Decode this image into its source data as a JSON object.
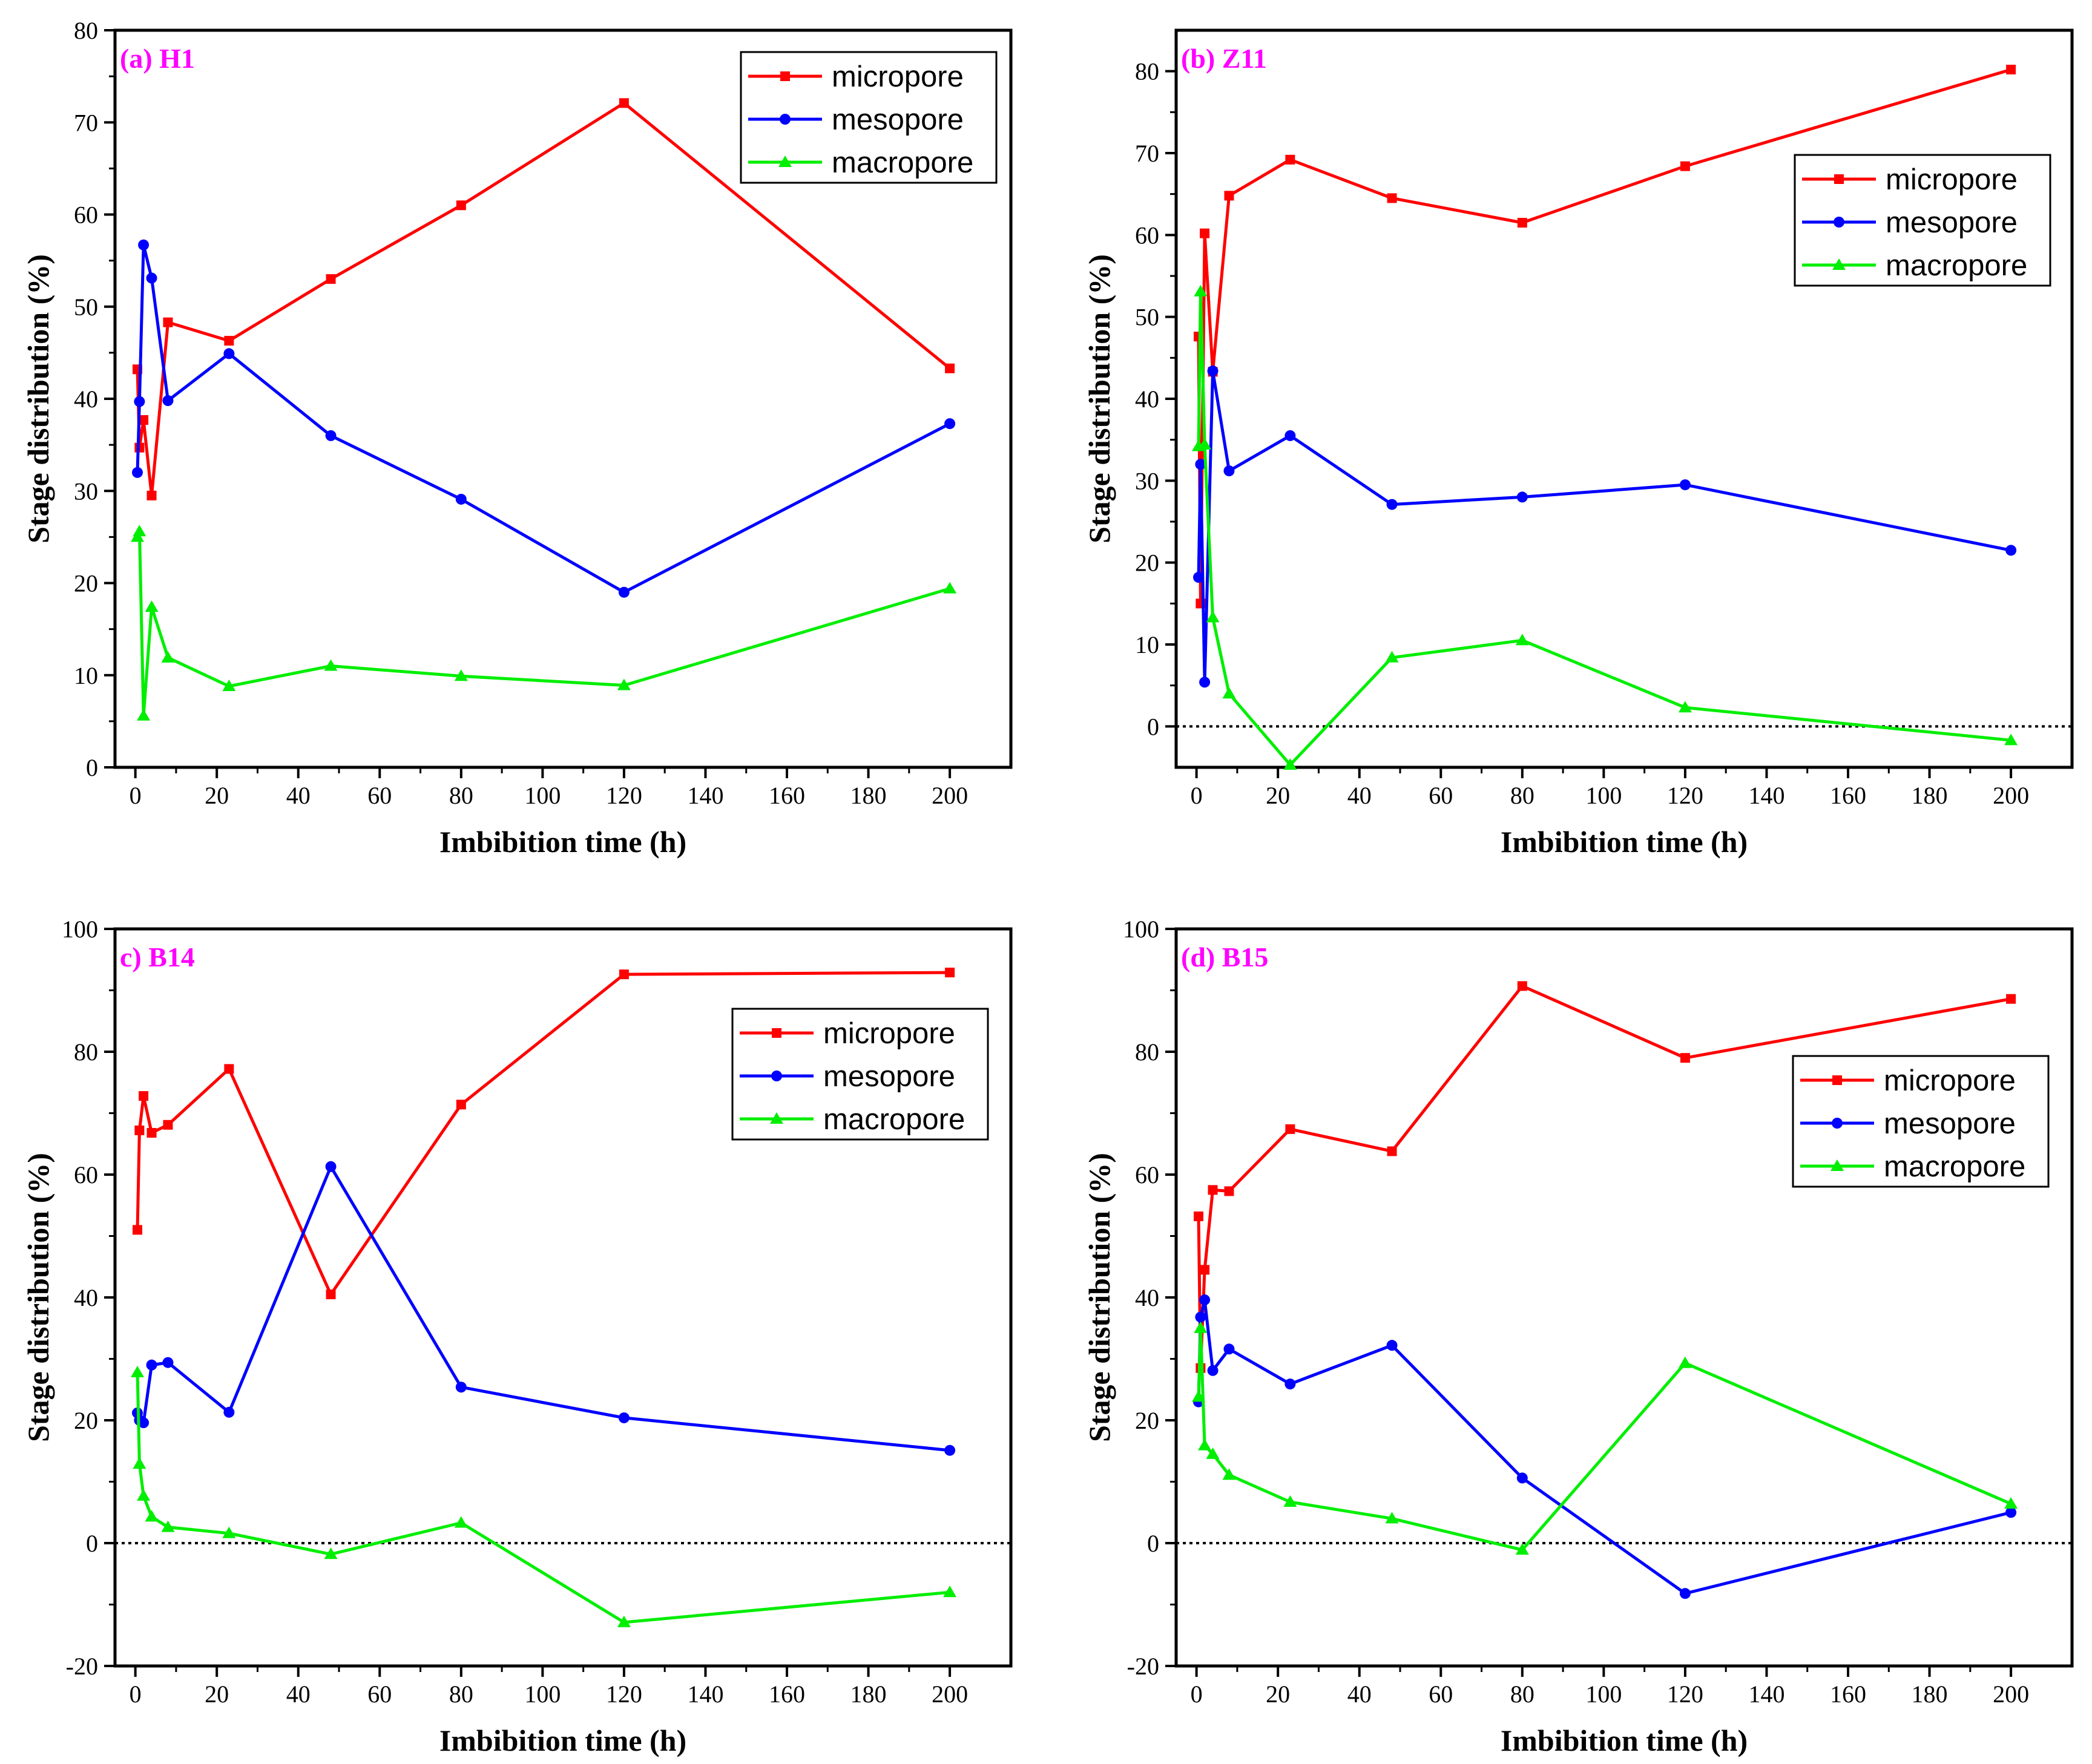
{
  "colors": {
    "micropore": "#ff0000",
    "mesopore": "#0000ff",
    "macropore": "#00ee00",
    "label": "#ff00ff",
    "axis": "#000000"
  },
  "chart_data": [
    {
      "type": "line",
      "panel_label": "(a) H1",
      "xlabel": "Imbibition time (h)",
      "ylabel": "Stage distribution (%)",
      "xlim": [
        -5,
        215
      ],
      "ylim": [
        0,
        80
      ],
      "xticks": [
        0,
        20,
        40,
        60,
        80,
        100,
        120,
        140,
        160,
        180,
        200
      ],
      "yticks": [
        0,
        10,
        20,
        30,
        40,
        50,
        60,
        70,
        80
      ],
      "zero_line": false,
      "legend_position": "top-right",
      "series": [
        {
          "name": "micropore",
          "marker": "square",
          "x": [
            0.5,
            1,
            2,
            4,
            8,
            23,
            48,
            80,
            120,
            200
          ],
          "y": [
            43.2,
            34.7,
            37.7,
            29.5,
            48.3,
            46.3,
            53,
            61,
            72.1,
            43.3
          ]
        },
        {
          "name": "mesopore",
          "marker": "circle",
          "x": [
            0.5,
            1,
            2,
            4,
            8,
            23,
            48,
            80,
            120,
            200
          ],
          "y": [
            32,
            39.7,
            56.7,
            53.1,
            39.8,
            44.9,
            36,
            29.1,
            19,
            37.3
          ]
        },
        {
          "name": "macropore",
          "marker": "triangle",
          "x": [
            0.5,
            1,
            2,
            4,
            8,
            23,
            48,
            80,
            120,
            200
          ],
          "y": [
            25,
            25.6,
            5.6,
            17.4,
            11.9,
            8.8,
            11,
            9.9,
            8.9,
            19.4
          ]
        }
      ]
    },
    {
      "type": "line",
      "panel_label": "(b) Z11",
      "xlabel": "Imbibition time (h)",
      "ylabel": "Stage distribution (%)",
      "xlim": [
        -5,
        215
      ],
      "ylim": [
        -5,
        85
      ],
      "xticks": [
        0,
        20,
        40,
        60,
        80,
        100,
        120,
        140,
        160,
        180,
        200
      ],
      "yticks": [
        0,
        10,
        20,
        30,
        40,
        50,
        60,
        70,
        80
      ],
      "zero_line": true,
      "legend_position": "upper-right",
      "series": [
        {
          "name": "micropore",
          "marker": "square",
          "x": [
            0.5,
            1,
            2,
            4,
            8,
            23,
            48,
            80,
            120,
            200
          ],
          "y": [
            47.6,
            15,
            60.2,
            43.3,
            64.8,
            69.2,
            64.5,
            61.5,
            68.4,
            80.2
          ]
        },
        {
          "name": "mesopore",
          "marker": "circle",
          "x": [
            0.5,
            1,
            2,
            4,
            8,
            23,
            48,
            80,
            120,
            200
          ],
          "y": [
            18.2,
            32,
            5.4,
            43.4,
            31.2,
            35.5,
            27.1,
            28,
            29.5,
            21.5
          ]
        },
        {
          "name": "macropore",
          "marker": "triangle",
          "x": [
            0.5,
            1,
            2,
            4,
            8,
            23,
            48,
            80,
            120,
            200
          ],
          "y": [
            34.2,
            53.1,
            34.4,
            13.3,
            4,
            -4.7,
            8.4,
            10.5,
            2.3,
            -1.7
          ]
        }
      ]
    },
    {
      "type": "line",
      "panel_label": "c) B14",
      "xlabel": "Imbibition time (h)",
      "ylabel": "Stage distribution (%)",
      "xlim": [
        -5,
        215
      ],
      "ylim": [
        -20,
        100
      ],
      "xticks": [
        0,
        20,
        40,
        60,
        80,
        100,
        120,
        140,
        160,
        180,
        200
      ],
      "yticks": [
        -20,
        0,
        20,
        40,
        60,
        80,
        100
      ],
      "zero_line": true,
      "legend_position": "upper-right",
      "series": [
        {
          "name": "micropore",
          "marker": "square",
          "x": [
            0.5,
            1,
            2,
            4,
            8,
            23,
            48,
            80,
            120,
            200
          ],
          "y": [
            51,
            67.2,
            72.8,
            66.8,
            68.1,
            77.2,
            40.5,
            71.4,
            92.6,
            92.9
          ]
        },
        {
          "name": "mesopore",
          "marker": "circle",
          "x": [
            0.5,
            1,
            2,
            4,
            8,
            23,
            48,
            80,
            120,
            200
          ],
          "y": [
            21.2,
            20,
            19.6,
            29,
            29.4,
            21.3,
            61.3,
            25.4,
            20.4,
            15.1
          ]
        },
        {
          "name": "macropore",
          "marker": "triangle",
          "x": [
            0.5,
            1,
            2,
            4,
            8,
            23,
            48,
            80,
            120,
            200
          ],
          "y": [
            27.8,
            12.9,
            7.7,
            4.3,
            2.6,
            1.6,
            -1.8,
            3.3,
            -12.9,
            -8
          ]
        }
      ]
    },
    {
      "type": "line",
      "panel_label": "(d) B15",
      "xlabel": "Imbibition time (h)",
      "ylabel": "Stage distribution (%)",
      "xlim": [
        -5,
        215
      ],
      "ylim": [
        -20,
        100
      ],
      "xticks": [
        0,
        20,
        40,
        60,
        80,
        100,
        120,
        140,
        160,
        180,
        200
      ],
      "yticks": [
        -20,
        0,
        20,
        40,
        60,
        80,
        100
      ],
      "zero_line": true,
      "legend_position": "upper-right",
      "series": [
        {
          "name": "micropore",
          "marker": "square",
          "x": [
            0.5,
            1,
            2,
            4,
            8,
            23,
            48,
            80,
            120,
            200
          ],
          "y": [
            53.2,
            28.5,
            44.5,
            57.5,
            57.3,
            67.4,
            63.8,
            90.7,
            79,
            88.6
          ]
        },
        {
          "name": "mesopore",
          "marker": "circle",
          "x": [
            0.5,
            1,
            2,
            4,
            8,
            23,
            48,
            80,
            120,
            200
          ],
          "y": [
            23,
            36.8,
            39.6,
            28.1,
            31.6,
            25.9,
            32.2,
            10.6,
            -8.2,
            5
          ]
        },
        {
          "name": "macropore",
          "marker": "triangle",
          "x": [
            0.5,
            1,
            2,
            4,
            8,
            23,
            48,
            80,
            120,
            200
          ],
          "y": [
            23.8,
            35,
            15.9,
            14.5,
            11.1,
            6.7,
            4,
            -1.1,
            29.3,
            6.4
          ]
        }
      ]
    }
  ]
}
